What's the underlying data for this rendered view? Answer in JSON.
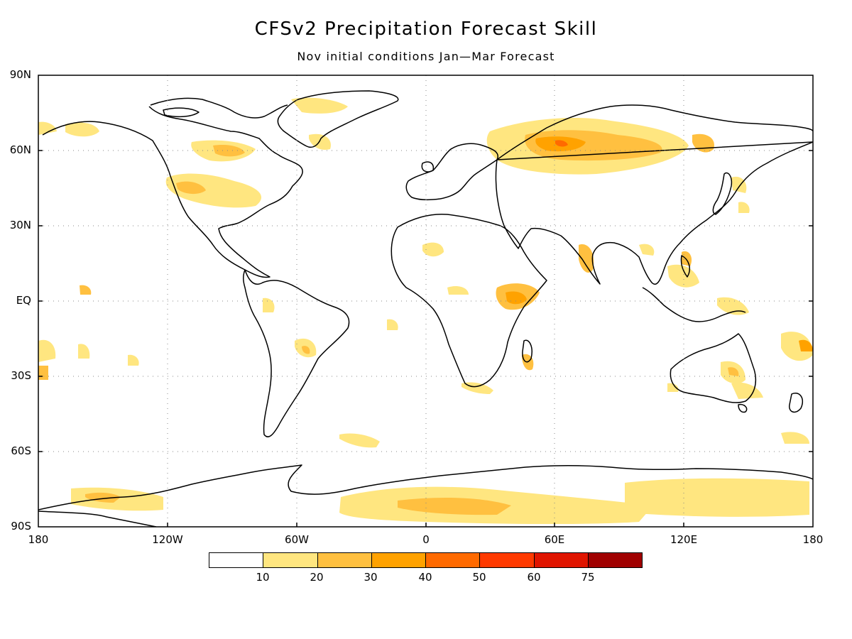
{
  "title": "CFSv2 Precipitation Forecast Skill",
  "subtitle": "Nov initial conditions   Jan—Mar Forecast",
  "axes": {
    "lat_labels": [
      "90N",
      "60N",
      "30N",
      "EQ",
      "30S",
      "60S",
      "90S"
    ],
    "lon_labels": [
      "180",
      "120W",
      "60W",
      "0",
      "60E",
      "120E",
      "180"
    ]
  },
  "colorbar": {
    "colors": [
      "#ffffff",
      "#ffe680",
      "#ffc040",
      "#ffa200",
      "#ff6a00",
      "#ff3a00",
      "#e01500",
      "#a00000"
    ],
    "labels": [
      "10",
      "20",
      "30",
      "40",
      "50",
      "60",
      "75"
    ]
  },
  "map": {
    "projection": "equirectangular",
    "gridlines": "dotted",
    "coastlines": "black"
  }
}
